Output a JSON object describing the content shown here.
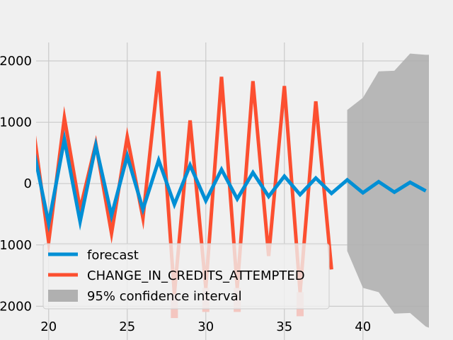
{
  "chart_data": {
    "type": "line",
    "title": "",
    "xlabel": "",
    "ylabel": "",
    "xlim": [
      19.2,
      44.2
    ],
    "ylim": [
      -2550,
      2300
    ],
    "grid": true,
    "legend_position": "bottom-left",
    "xticks": [
      20,
      25,
      30,
      35,
      40
    ],
    "yticks": [
      2000,
      1000,
      0,
      -1000,
      -2000
    ],
    "ytick_labels": [
      "2000",
      "1000",
      "0",
      "1000",
      "2000"
    ],
    "series": [
      {
        "name": "forecast",
        "color": "#008fd5",
        "x": [
          19,
          20,
          21,
          22,
          23,
          24,
          25,
          26,
          27,
          28,
          29,
          30,
          31,
          32,
          33,
          34,
          35,
          36,
          37,
          38,
          39,
          40,
          41,
          42,
          43,
          44
        ],
        "y": [
          600,
          -650,
          720,
          -620,
          620,
          -520,
          450,
          -420,
          380,
          -340,
          300,
          -280,
          230,
          -250,
          180,
          -210,
          120,
          -180,
          90,
          -160,
          60,
          -150,
          30,
          -140,
          20,
          -120
        ]
      },
      {
        "name": "CHANGE_IN_CREDITS_ATTEMPTED",
        "color": "#fc4f30",
        "x": [
          19,
          20,
          21,
          22,
          23,
          24,
          25,
          26,
          27,
          28,
          29,
          30,
          31,
          32,
          33,
          34,
          35,
          36,
          37,
          38
        ],
        "y": [
          950,
          -950,
          1070,
          -420,
          650,
          -810,
          760,
          -560,
          1830,
          -1800,
          1030,
          -1700,
          1740,
          -1700,
          1670,
          -1180,
          1590,
          -1770,
          1340,
          -1400
        ]
      }
    ],
    "confidence_interval": {
      "name": "95% confidence interval",
      "color": "#b0b0b0",
      "x": [
        39,
        40,
        41,
        42,
        43,
        44,
        44.2
      ],
      "upper": [
        1200,
        1400,
        1830,
        1840,
        2120,
        2100,
        2100
      ],
      "lower": [
        -1100,
        -1700,
        -1770,
        -2120,
        -2110,
        -2330,
        -2350
      ]
    },
    "red_markers": {
      "color": "#f4c6c0",
      "x": [
        28,
        30,
        32,
        36
      ],
      "y": [
        -1800,
        -1700,
        -1700,
        -1770
      ]
    }
  }
}
